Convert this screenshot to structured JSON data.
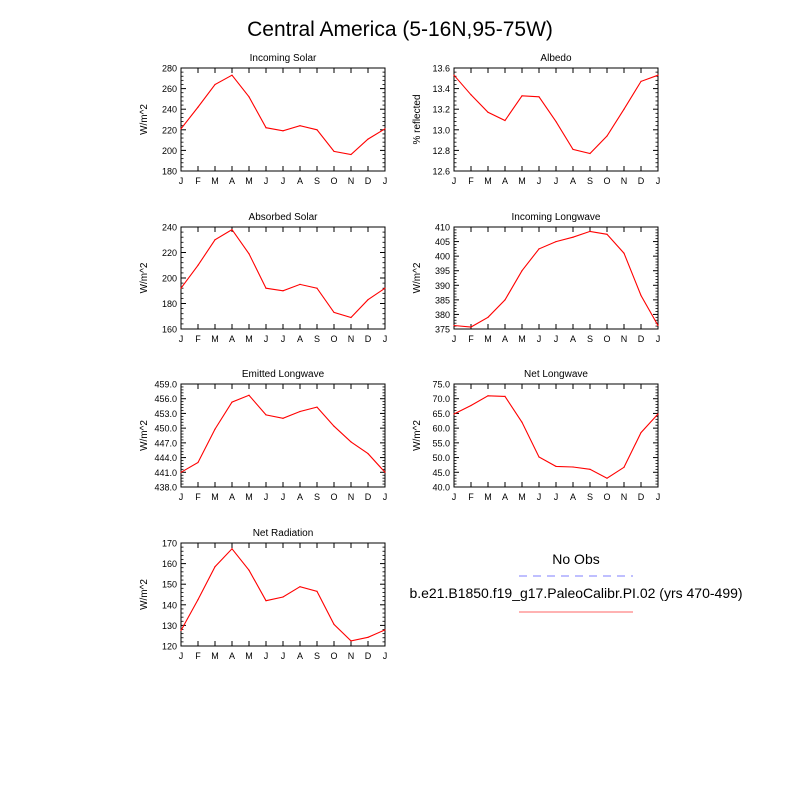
{
  "figure_title": "Central America (5-16N,95-75W)",
  "months": [
    "J",
    "F",
    "M",
    "A",
    "M",
    "J",
    "J",
    "A",
    "S",
    "O",
    "N",
    "D",
    "J"
  ],
  "legend": {
    "obs_label": "No Obs",
    "obs_color": "#aaaaff",
    "model_label": "b.e21.B1850.f19_g17.PaleoCalibr.PI.02 (yrs 470-499)",
    "model_color": "#ff9999"
  },
  "line_color": "#ff0000",
  "chart_data": [
    {
      "type": "line",
      "title": "Incoming Solar",
      "ylabel": "W/m^2",
      "ylim": [
        180,
        280
      ],
      "yticks": [
        180,
        200,
        220,
        240,
        260,
        280
      ],
      "ytick_labels": [
        "180",
        "200",
        "220",
        "240",
        "260",
        "280"
      ],
      "values": [
        221,
        242,
        264,
        273,
        252,
        222,
        219,
        224,
        220,
        199,
        196,
        211,
        221
      ]
    },
    {
      "type": "line",
      "title": "Albedo",
      "ylabel": "% reflected",
      "ylim": [
        12.6,
        13.6
      ],
      "yticks": [
        12.6,
        12.8,
        13.0,
        13.2,
        13.4,
        13.6
      ],
      "ytick_labels": [
        "12.6",
        "12.8",
        "13.0",
        "13.2",
        "13.4",
        "13.6"
      ],
      "values": [
        13.53,
        13.34,
        13.17,
        13.09,
        13.33,
        13.32,
        13.08,
        12.81,
        12.77,
        12.94,
        13.2,
        13.47,
        13.53
      ]
    },
    {
      "type": "line",
      "title": "Absorbed Solar",
      "ylabel": "W/m^2",
      "ylim": [
        160,
        240
      ],
      "yticks": [
        160,
        180,
        200,
        220,
        240
      ],
      "ytick_labels": [
        "160",
        "180",
        "200",
        "220",
        "240"
      ],
      "values": [
        192,
        210,
        230,
        238,
        219,
        192,
        190,
        195,
        192,
        173,
        169,
        183,
        192
      ]
    },
    {
      "type": "line",
      "title": "Incoming Longwave",
      "ylabel": "W/m^2",
      "ylim": [
        375,
        410
      ],
      "yticks": [
        375,
        380,
        385,
        390,
        395,
        400,
        405,
        410
      ],
      "ytick_labels": [
        "375",
        "380",
        "385",
        "390",
        "395",
        "400",
        "405",
        "410"
      ],
      "values": [
        376.2,
        375.7,
        379,
        385,
        395,
        402.5,
        405,
        406.5,
        408.5,
        407.5,
        401,
        386.5,
        376.2
      ]
    },
    {
      "type": "line",
      "title": "Emitted Longwave",
      "ylabel": "W/m^2",
      "ylim": [
        438,
        459
      ],
      "yticks": [
        438,
        441,
        444,
        447,
        450,
        453,
        456,
        459
      ],
      "ytick_labels": [
        "438.0",
        "441.0",
        "444.0",
        "447.0",
        "450.0",
        "453.0",
        "456.0",
        "459.0"
      ],
      "values": [
        441,
        443,
        449.8,
        455.3,
        456.7,
        452.7,
        452,
        453.4,
        454.3,
        450.4,
        447.2,
        444.8,
        441
      ]
    },
    {
      "type": "line",
      "title": "Net Longwave",
      "ylabel": "W/m^2",
      "ylim": [
        40,
        75
      ],
      "yticks": [
        40,
        45,
        50,
        55,
        60,
        65,
        70,
        75
      ],
      "ytick_labels": [
        "40.0",
        "45.0",
        "50.0",
        "55.0",
        "60.0",
        "65.0",
        "70.0",
        "75.0"
      ],
      "values": [
        64.8,
        67.7,
        71,
        70.8,
        62,
        50.2,
        47,
        46.8,
        46,
        43,
        46.7,
        58.5,
        64.8
      ]
    },
    {
      "type": "line",
      "title": "Net Radiation",
      "ylabel": "W/m^2",
      "ylim": [
        120,
        170
      ],
      "yticks": [
        120,
        130,
        140,
        150,
        160,
        170
      ],
      "ytick_labels": [
        "120",
        "130",
        "140",
        "150",
        "160",
        "170"
      ],
      "values": [
        127.5,
        142.5,
        158.5,
        167.2,
        156.8,
        142,
        143.8,
        148.8,
        146.5,
        130.5,
        122.5,
        124.2,
        127.8
      ]
    }
  ]
}
